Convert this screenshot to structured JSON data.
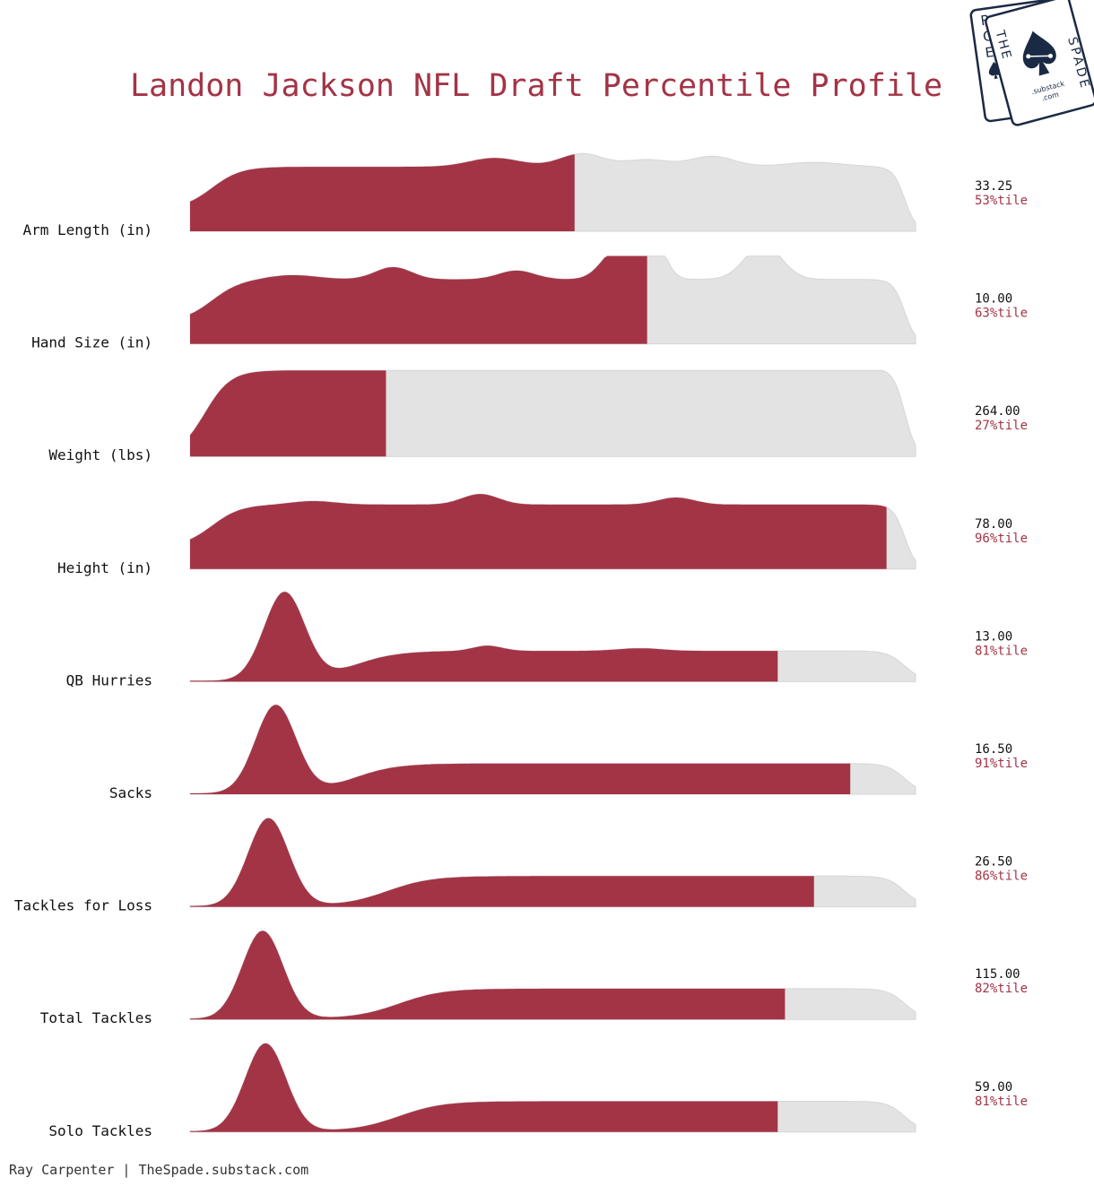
{
  "chart_data": {
    "type": "ridgeline",
    "title": "Landon Jackson NFL Draft Percentile Profile",
    "fill_color": "#a33446",
    "background_fill_color": "#e3e3e3",
    "rows": [
      {
        "label": "Arm Length (in)",
        "value": "33.25",
        "percentile": 53,
        "percentile_text": "53%tile",
        "shape": "wavy",
        "peaks": [
          [
            0.42,
            0.1,
            0.035
          ],
          [
            0.54,
            0.15,
            0.03
          ],
          [
            0.63,
            0.08,
            0.03
          ],
          [
            0.72,
            0.12,
            0.03
          ],
          [
            0.86,
            0.05,
            0.04
          ]
        ]
      },
      {
        "label": "Hand Size (in)",
        "value": "10.00",
        "percentile": 63,
        "percentile_text": "63%tile",
        "shape": "wavy",
        "peaks": [
          [
            0.14,
            0.05,
            0.035
          ],
          [
            0.28,
            0.14,
            0.025
          ],
          [
            0.45,
            0.1,
            0.025
          ],
          [
            0.45,
            0.0,
            0.02
          ],
          [
            0.59,
            0.35,
            0.022
          ],
          [
            0.63,
            0.75,
            0.018
          ],
          [
            0.79,
            0.4,
            0.025
          ]
        ]
      },
      {
        "label": "Weight (lbs)",
        "value": "264.00",
        "percentile": 27,
        "percentile_text": "27%tile",
        "shape": "plateau",
        "peaks": []
      },
      {
        "label": "Height (in)",
        "value": "78.00",
        "percentile": 96,
        "percentile_text": "96%tile",
        "shape": "wavy",
        "peaks": [
          [
            0.17,
            0.04,
            0.03
          ],
          [
            0.4,
            0.12,
            0.025
          ],
          [
            0.67,
            0.08,
            0.025
          ]
        ]
      },
      {
        "label": "QB Hurries",
        "value": "13.00",
        "percentile": 81,
        "percentile_text": "81%tile",
        "shape": "skewed",
        "spike": 0.13,
        "step": 0.28,
        "wiggle": [
          [
            0.41,
            0.06,
            0.02
          ],
          [
            0.62,
            0.03,
            0.03
          ]
        ]
      },
      {
        "label": "Sacks",
        "value": "16.50",
        "percentile": 91,
        "percentile_text": "91%tile",
        "shape": "skewed",
        "spike": 0.118,
        "step": 0.28,
        "wiggle": []
      },
      {
        "label": "Tackles for Loss",
        "value": "26.50",
        "percentile": 86,
        "percentile_text": "86%tile",
        "shape": "skewed",
        "spike": 0.108,
        "step": 0.34,
        "wiggle": []
      },
      {
        "label": "Total Tackles",
        "value": "115.00",
        "percentile": 82,
        "percentile_text": "82%tile",
        "shape": "skewed",
        "spike": 0.1,
        "step": 0.36,
        "wiggle": []
      },
      {
        "label": "Solo Tackles",
        "value": "59.00",
        "percentile": 81,
        "percentile_text": "81%tile",
        "shape": "skewed",
        "spike": 0.104,
        "step": 0.36,
        "wiggle": []
      }
    ]
  },
  "credit": "Ray Carpenter | TheSpade.substack.com",
  "logo": {
    "back_card_letters": [
      "R",
      "C",
      "E"
    ],
    "front_top": "THE",
    "front_side": "SPADE",
    "url_top": ".substack",
    "url_bottom": ".com",
    "icon": "spade-icon"
  }
}
